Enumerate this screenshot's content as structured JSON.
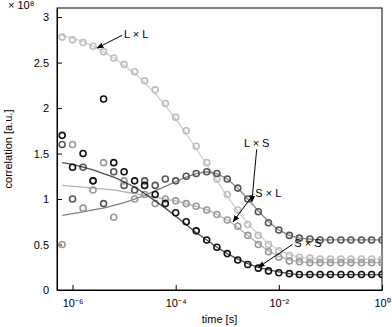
{
  "chart_data": {
    "type": "scatter",
    "x_label": "time [s]",
    "y_label": "correlation [a.u.]",
    "y_multiplier": "× 10⁸",
    "log": "x",
    "grid": false,
    "marker": "circle",
    "xlim": [
      5e-07,
      1
    ],
    "xticks": [
      {
        "value": 1e-06,
        "label": "10⁻⁶"
      },
      {
        "value": 0.0001,
        "label": "10⁻⁴"
      },
      {
        "value": 0.01,
        "label": "10⁻²"
      },
      {
        "value": 1,
        "label": "10⁰"
      }
    ],
    "ylim": [
      0,
      3.1
    ],
    "yticks": [
      0,
      0.5,
      1,
      1.5,
      2,
      2.5,
      3
    ],
    "x": [
      6.3e-07,
      1e-06,
      1.6e-06,
      2.5e-06,
      4e-06,
      6.3e-06,
      1e-05,
      1.6e-05,
      2.5e-05,
      4e-05,
      6.3e-05,
      0.0001,
      0.00016,
      0.00025,
      0.0004,
      0.00063,
      0.001,
      0.0016,
      0.0025,
      0.004,
      0.0063,
      0.01,
      0.016,
      0.025,
      0.04,
      0.063,
      0.1,
      0.16,
      0.25,
      0.4,
      0.63,
      1
    ],
    "series": [
      {
        "color": "#bdbdbd",
        "values": [
          2.78,
          2.75,
          2.72,
          2.68,
          2.62,
          2.55,
          2.48,
          2.4,
          2.3,
          2.2,
          2.05,
          1.9,
          1.75,
          1.58,
          1.4,
          1.22,
          1.05,
          0.88,
          0.72,
          0.6,
          0.5,
          0.43,
          0.38,
          0.36,
          0.35,
          0.34,
          0.34,
          0.34,
          0.34,
          0.34,
          0.34,
          0.34
        ],
        "fit": [
          2.8,
          2.77,
          2.73,
          2.68,
          2.62,
          2.55,
          2.47,
          2.38,
          2.28,
          2.16,
          2.03,
          1.88,
          1.72,
          1.55,
          1.38,
          1.2,
          1.03,
          0.87,
          0.73,
          0.61,
          0.51,
          0.44,
          0.39,
          0.36,
          0.35,
          0.34,
          0.34,
          0.34,
          0.34,
          0.34,
          0.34,
          0.34
        ]
      },
      {
        "color": "#555555",
        "values": [
          1.6,
          1.0,
          1.35,
          1.2,
          0.95,
          1.3,
          1.15,
          1.1,
          1.2,
          1.15,
          1.22,
          1.2,
          1.25,
          1.28,
          1.3,
          1.28,
          1.22,
          1.12,
          1.0,
          0.86,
          0.74,
          0.66,
          0.6,
          0.57,
          0.56,
          0.55,
          0.55,
          0.55,
          0.55,
          0.55,
          0.55,
          0.55
        ],
        "fit": [
          0.82,
          0.84,
          0.86,
          0.88,
          0.9,
          0.93,
          0.96,
          1.0,
          1.04,
          1.09,
          1.14,
          1.19,
          1.24,
          1.28,
          1.3,
          1.28,
          1.22,
          1.12,
          1.0,
          0.87,
          0.75,
          0.66,
          0.6,
          0.57,
          0.56,
          0.55,
          0.55,
          0.55,
          0.55,
          0.55,
          0.55,
          0.55
        ]
      },
      {
        "color": "#999999",
        "values": [
          0.5,
          1.6,
          0.9,
          1.1,
          1.4,
          0.8,
          1.2,
          1.0,
          1.05,
          0.95,
          1.0,
          0.98,
          0.95,
          0.92,
          0.88,
          0.83,
          0.77,
          0.7,
          0.6,
          0.5,
          0.42,
          0.36,
          0.32,
          0.31,
          0.3,
          0.3,
          0.3,
          0.3,
          0.3,
          0.3,
          0.3,
          0.3
        ],
        "fit": [
          1.15,
          1.14,
          1.13,
          1.12,
          1.11,
          1.1,
          1.08,
          1.06,
          1.04,
          1.02,
          1.0,
          0.98,
          0.95,
          0.92,
          0.88,
          0.83,
          0.77,
          0.69,
          0.6,
          0.51,
          0.43,
          0.37,
          0.33,
          0.31,
          0.3,
          0.3,
          0.3,
          0.3,
          0.3,
          0.3,
          0.3,
          0.3
        ]
      },
      {
        "color": "#111111",
        "values": [
          1.7,
          1.35,
          1.5,
          1.2,
          2.1,
          1.4,
          1.3,
          1.2,
          1.15,
          1.05,
          0.95,
          0.85,
          0.75,
          0.65,
          0.55,
          0.47,
          0.4,
          0.33,
          0.28,
          0.24,
          0.21,
          0.19,
          0.18,
          0.17,
          0.17,
          0.17,
          0.17,
          0.17,
          0.17,
          0.17,
          0.17,
          0.17
        ],
        "fit": [
          1.4,
          1.38,
          1.35,
          1.32,
          1.28,
          1.24,
          1.19,
          1.13,
          1.06,
          0.98,
          0.9,
          0.81,
          0.72,
          0.63,
          0.55,
          0.47,
          0.4,
          0.34,
          0.29,
          0.25,
          0.22,
          0.2,
          0.18,
          0.17,
          0.17,
          0.17,
          0.17,
          0.17,
          0.17,
          0.17,
          0.17,
          0.17
        ]
      }
    ],
    "annotations": [
      {
        "text": "L × L",
        "x": 1e-05,
        "y": 2.8,
        "arrow_x": 3e-06,
        "arrow_y": 2.66
      },
      {
        "text": "L × S",
        "x": 0.0021,
        "y": 1.6,
        "arrow_x": 0.003,
        "arrow_y": 0.97
      },
      {
        "text": "S × L",
        "x": 0.0035,
        "y": 1.05,
        "arrow_x": 0.0013,
        "arrow_y": 0.75
      },
      {
        "text": "S × S",
        "x": 0.02,
        "y": 0.5,
        "arrow_x": 0.004,
        "arrow_y": 0.25
      }
    ]
  }
}
